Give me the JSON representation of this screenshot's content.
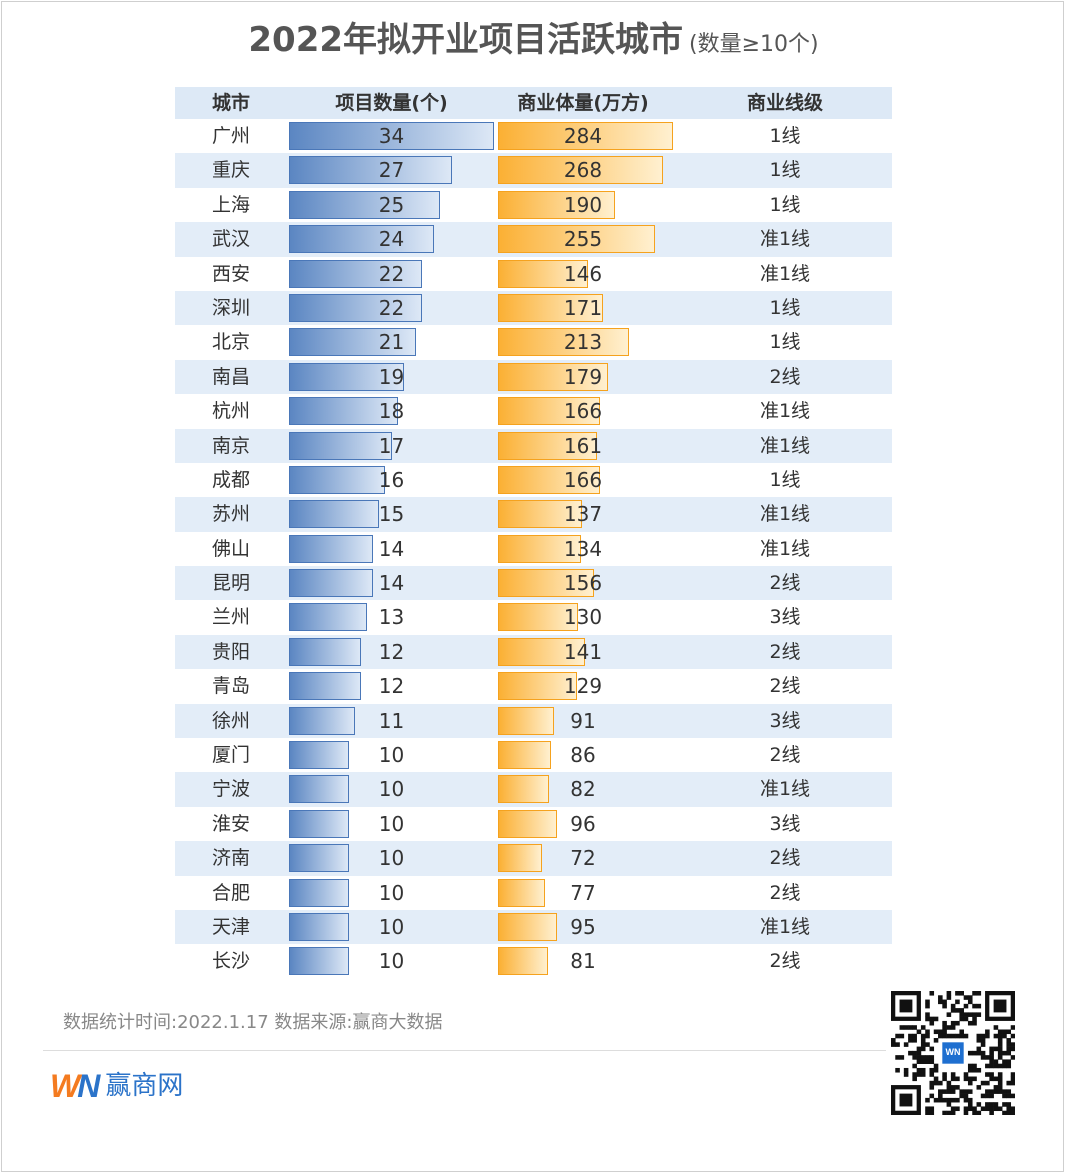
{
  "title": {
    "main": "2022年拟开业项目活跃城市",
    "sub": "(数量≥10个)"
  },
  "chart_data": {
    "type": "table",
    "columns": [
      "城市",
      "项目数量(个)",
      "商业体量(万方)",
      "商业线级"
    ],
    "rows": [
      {
        "city": "广州",
        "count": 34,
        "area": 284,
        "tier": "1线"
      },
      {
        "city": "重庆",
        "count": 27,
        "area": 268,
        "tier": "1线"
      },
      {
        "city": "上海",
        "count": 25,
        "area": 190,
        "tier": "1线"
      },
      {
        "city": "武汉",
        "count": 24,
        "area": 255,
        "tier": "准1线"
      },
      {
        "city": "西安",
        "count": 22,
        "area": 146,
        "tier": "准1线"
      },
      {
        "city": "深圳",
        "count": 22,
        "area": 171,
        "tier": "1线"
      },
      {
        "city": "北京",
        "count": 21,
        "area": 213,
        "tier": "1线"
      },
      {
        "city": "南昌",
        "count": 19,
        "area": 179,
        "tier": "2线"
      },
      {
        "city": "杭州",
        "count": 18,
        "area": 166,
        "tier": "准1线"
      },
      {
        "city": "南京",
        "count": 17,
        "area": 161,
        "tier": "准1线"
      },
      {
        "city": "成都",
        "count": 16,
        "area": 166,
        "tier": "1线"
      },
      {
        "city": "苏州",
        "count": 15,
        "area": 137,
        "tier": "准1线"
      },
      {
        "city": "佛山",
        "count": 14,
        "area": 134,
        "tier": "准1线"
      },
      {
        "city": "昆明",
        "count": 14,
        "area": 156,
        "tier": "2线"
      },
      {
        "city": "兰州",
        "count": 13,
        "area": 130,
        "tier": "3线"
      },
      {
        "city": "贵阳",
        "count": 12,
        "area": 141,
        "tier": "2线"
      },
      {
        "city": "青岛",
        "count": 12,
        "area": 129,
        "tier": "2线"
      },
      {
        "city": "徐州",
        "count": 11,
        "area": 91,
        "tier": "3线"
      },
      {
        "city": "厦门",
        "count": 10,
        "area": 86,
        "tier": "2线"
      },
      {
        "city": "宁波",
        "count": 10,
        "area": 82,
        "tier": "准1线"
      },
      {
        "city": "淮安",
        "count": 10,
        "area": 96,
        "tier": "3线"
      },
      {
        "city": "济南",
        "count": 10,
        "area": 72,
        "tier": "2线"
      },
      {
        "city": "合肥",
        "count": 10,
        "area": 77,
        "tier": "2线"
      },
      {
        "city": "天津",
        "count": 10,
        "area": 95,
        "tier": "准1线"
      },
      {
        "city": "长沙",
        "count": 10,
        "area": 81,
        "tier": "2线"
      }
    ]
  },
  "footer": {
    "text": "数据统计时间:2022.1.17  数据来源:赢商大数据"
  },
  "logo": {
    "mark_w": "W",
    "mark_n": "N",
    "name": "赢商网"
  },
  "colors": {
    "count_bar": "#5b86c2",
    "area_bar": "#fbb034",
    "row_alt": "#e3edf8",
    "header_bg": "#dde9f6"
  }
}
